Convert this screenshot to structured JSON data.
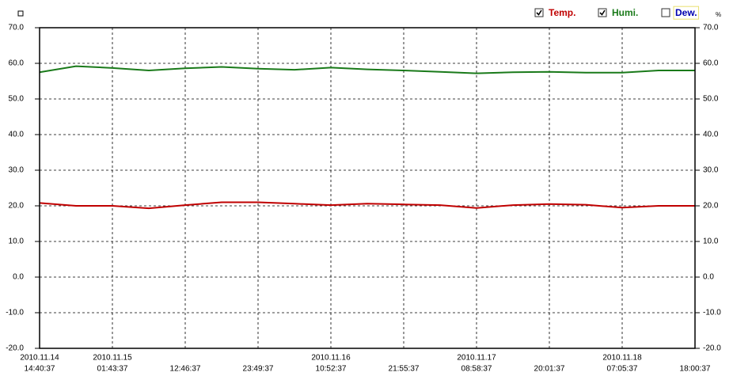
{
  "chart_data": {
    "type": "line",
    "y2_label": "%",
    "categories": [
      "14:40:37",
      null,
      "01:43:37",
      null,
      "12:46:37",
      null,
      "23:49:37",
      null,
      "10:52:37",
      null,
      "21:55:37",
      null,
      "08:58:37",
      null,
      "20:01:37",
      null,
      "07:05:37",
      null,
      "18:00:37"
    ],
    "dates": [
      "2010.11.14",
      null,
      "2010.11.15",
      null,
      null,
      null,
      null,
      null,
      "2010.11.16",
      null,
      null,
      null,
      "2010.11.17",
      null,
      null,
      null,
      "2010.11.18",
      null,
      null
    ],
    "series": [
      {
        "name": "Temp.",
        "color": "#c00000",
        "checked": true,
        "values": [
          20.8,
          20.0,
          20.0,
          19.3,
          20.2,
          21.0,
          21.0,
          20.6,
          20.2,
          20.6,
          20.4,
          20.2,
          19.4,
          20.2,
          20.5,
          20.3,
          19.5,
          20.0,
          20.0
        ]
      },
      {
        "name": "Humi.",
        "color": "#1a7a1a",
        "checked": true,
        "values": [
          57.5,
          59.2,
          58.7,
          58.0,
          58.6,
          59.0,
          58.5,
          58.2,
          58.8,
          58.3,
          58.0,
          57.6,
          57.2,
          57.5,
          57.6,
          57.4,
          57.4,
          58.0,
          58.0
        ]
      }
    ],
    "unchecked_series": [
      {
        "name": "Dew.",
        "color": "#0000b0",
        "checked": false
      }
    ],
    "ylim": [
      -20,
      70
    ],
    "yticks": [
      {
        "value": -20,
        "label": "-20.0"
      },
      {
        "value": -10,
        "label": "-10.0"
      },
      {
        "value": 0,
        "label": "0.0"
      },
      {
        "value": 10,
        "label": "10.0"
      },
      {
        "value": 20,
        "label": "20.0"
      },
      {
        "value": 30,
        "label": "30.0"
      },
      {
        "value": 40,
        "label": "40.0"
      },
      {
        "value": 50,
        "label": "50.0"
      },
      {
        "value": 60,
        "label": "60.0"
      },
      {
        "value": 70,
        "label": "70.0"
      }
    ],
    "y2lim": [
      -20,
      70
    ],
    "y2ticks": [
      {
        "value": -20,
        "label": "-20.0"
      },
      {
        "value": -10,
        "label": "-10.0"
      },
      {
        "value": 0,
        "label": "0.0"
      },
      {
        "value": 10,
        "label": "10.0"
      },
      {
        "value": 20,
        "label": "20.0"
      },
      {
        "value": 30,
        "label": "30.0"
      },
      {
        "value": 40,
        "label": "40.0"
      },
      {
        "value": 50,
        "label": "50.0"
      },
      {
        "value": 60,
        "label": "60.0"
      },
      {
        "value": 70,
        "label": "70.0"
      }
    ],
    "grid": true
  }
}
